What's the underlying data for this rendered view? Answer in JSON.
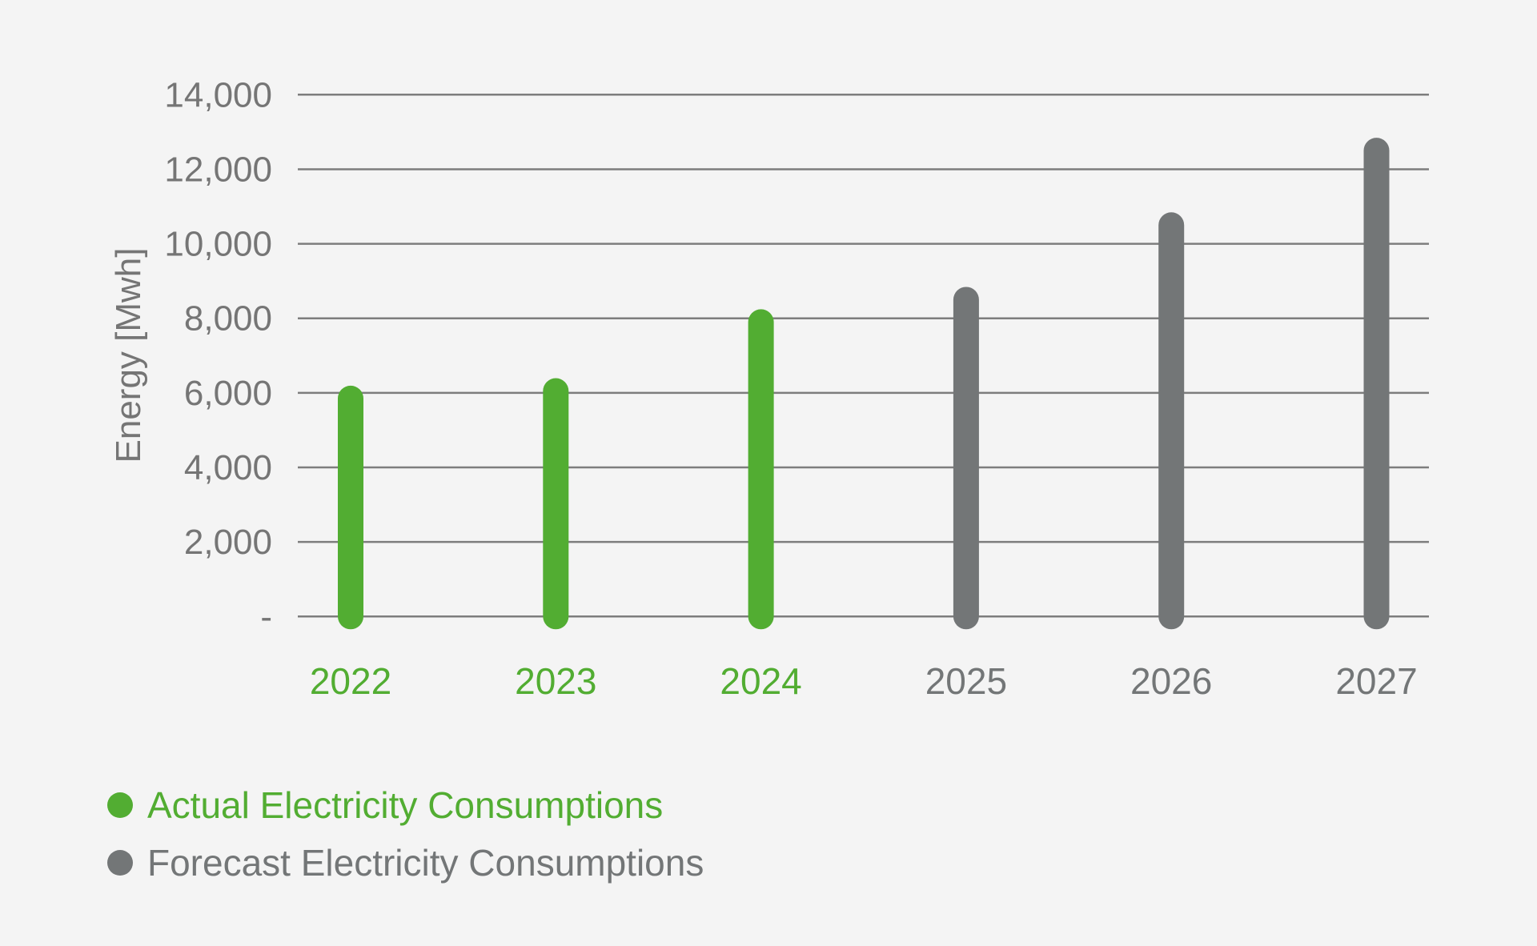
{
  "colors": {
    "actual": "#52ad32",
    "forecast": "#737677",
    "grid": "#7d7d7d",
    "text": "#757575"
  },
  "chart_data": {
    "type": "bar",
    "title": "",
    "xlabel": "",
    "ylabel": "Energy [Mwh]",
    "ylim": [
      0,
      14000
    ],
    "grid": true,
    "yticks": [
      0,
      2000,
      4000,
      6000,
      8000,
      10000,
      12000,
      14000
    ],
    "ytick_labels": [
      "-",
      "2,000",
      "4,000",
      "6,000",
      "8,000",
      "10,000",
      "12,000",
      "14,000"
    ],
    "categories": [
      "2022",
      "2023",
      "2024",
      "2025",
      "2026",
      "2027"
    ],
    "series": [
      {
        "name": "Actual Electricity Consumptions",
        "color_key": "actual",
        "values": [
          5850,
          6050,
          7900,
          null,
          null,
          null
        ]
      },
      {
        "name": "Forecast Electricity Consumptions",
        "color_key": "forecast",
        "values": [
          null,
          null,
          null,
          8500,
          10500,
          12500
        ]
      }
    ],
    "legend_position": "bottom-left"
  },
  "legend": [
    {
      "label": "Actual Electricity Consumptions",
      "color_key": "actual"
    },
    {
      "label": "Forecast Electricity Consumptions",
      "color_key": "forecast"
    }
  ]
}
